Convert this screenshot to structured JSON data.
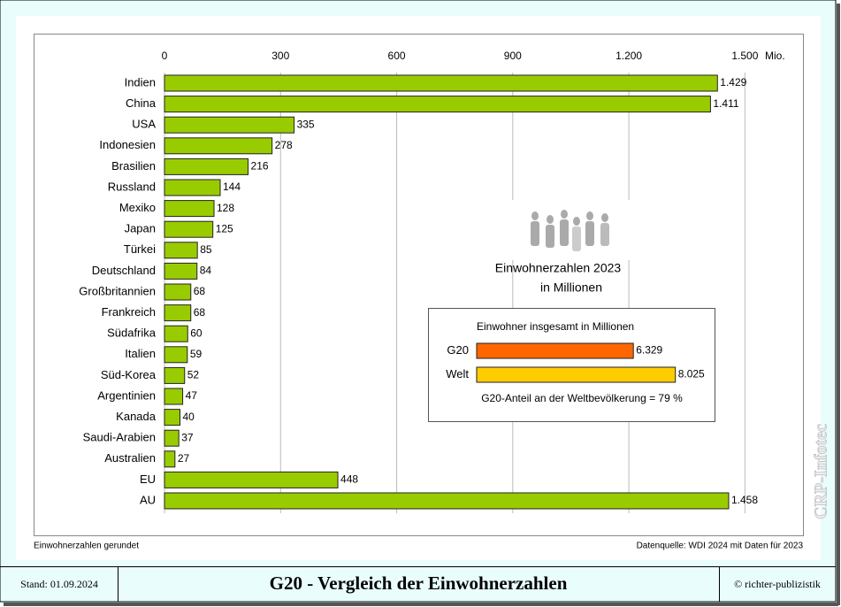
{
  "chart_data": [
    {
      "type": "bar",
      "horizontal": true,
      "categories": [
        "Indien",
        "China",
        "USA",
        "Indonesien",
        "Brasilien",
        "Russland",
        "Mexiko",
        "Japan",
        "Türkei",
        "Deutschland",
        "Großbritannien",
        "Frankreich",
        "Südafrika",
        "Italien",
        "Süd-Korea",
        "Argentinien",
        "Kanada",
        "Saudi-Arabien",
        "Australien",
        "EU",
        "AU"
      ],
      "values": [
        1429,
        1411,
        335,
        278,
        216,
        144,
        128,
        125,
        85,
        84,
        68,
        68,
        60,
        59,
        52,
        47,
        40,
        37,
        27,
        448,
        1458
      ],
      "value_labels": [
        "1.429",
        "1.411",
        "335",
        "278",
        "216",
        "144",
        "128",
        "125",
        "85",
        "84",
        "68",
        "68",
        "60",
        "59",
        "52",
        "47",
        "40",
        "37",
        "27",
        "448",
        "1.458"
      ],
      "color": "#99cc00",
      "xlim": [
        0,
        1650
      ],
      "xticks": [
        0,
        300,
        600,
        900,
        {
          "value": 1200,
          "label": "1.200"
        },
        {
          "value": 1500,
          "label": "1.500"
        }
      ],
      "x_unit": "Mio.",
      "grid": true,
      "annotation": [
        "Einwohnerzahlen 2023",
        "in Millionen"
      ]
    },
    {
      "type": "bar",
      "horizontal": true,
      "title": "Einwohner insgesamt in Millionen",
      "categories": [
        "G20",
        "Welt"
      ],
      "values": [
        6329,
        8025
      ],
      "value_labels": [
        "6.329",
        "8.025"
      ],
      "colors": [
        "#ff6600",
        "#ffcc00"
      ],
      "xlim": [
        0,
        10000
      ],
      "caption": "G20-Anteil an der Weltbevölkerung = 79 %"
    }
  ],
  "notes": {
    "left": "Einwohnerzahlen gerundet",
    "right": "Datenquelle: WDI 2024 mit Daten für 2023"
  },
  "footer": {
    "date": "Stand: 01.09.2024",
    "title": "G20 - Vergleich der Einwohnerzahlen",
    "copyright": "© richter-publizistik"
  },
  "watermark": "CRP-Infotec"
}
